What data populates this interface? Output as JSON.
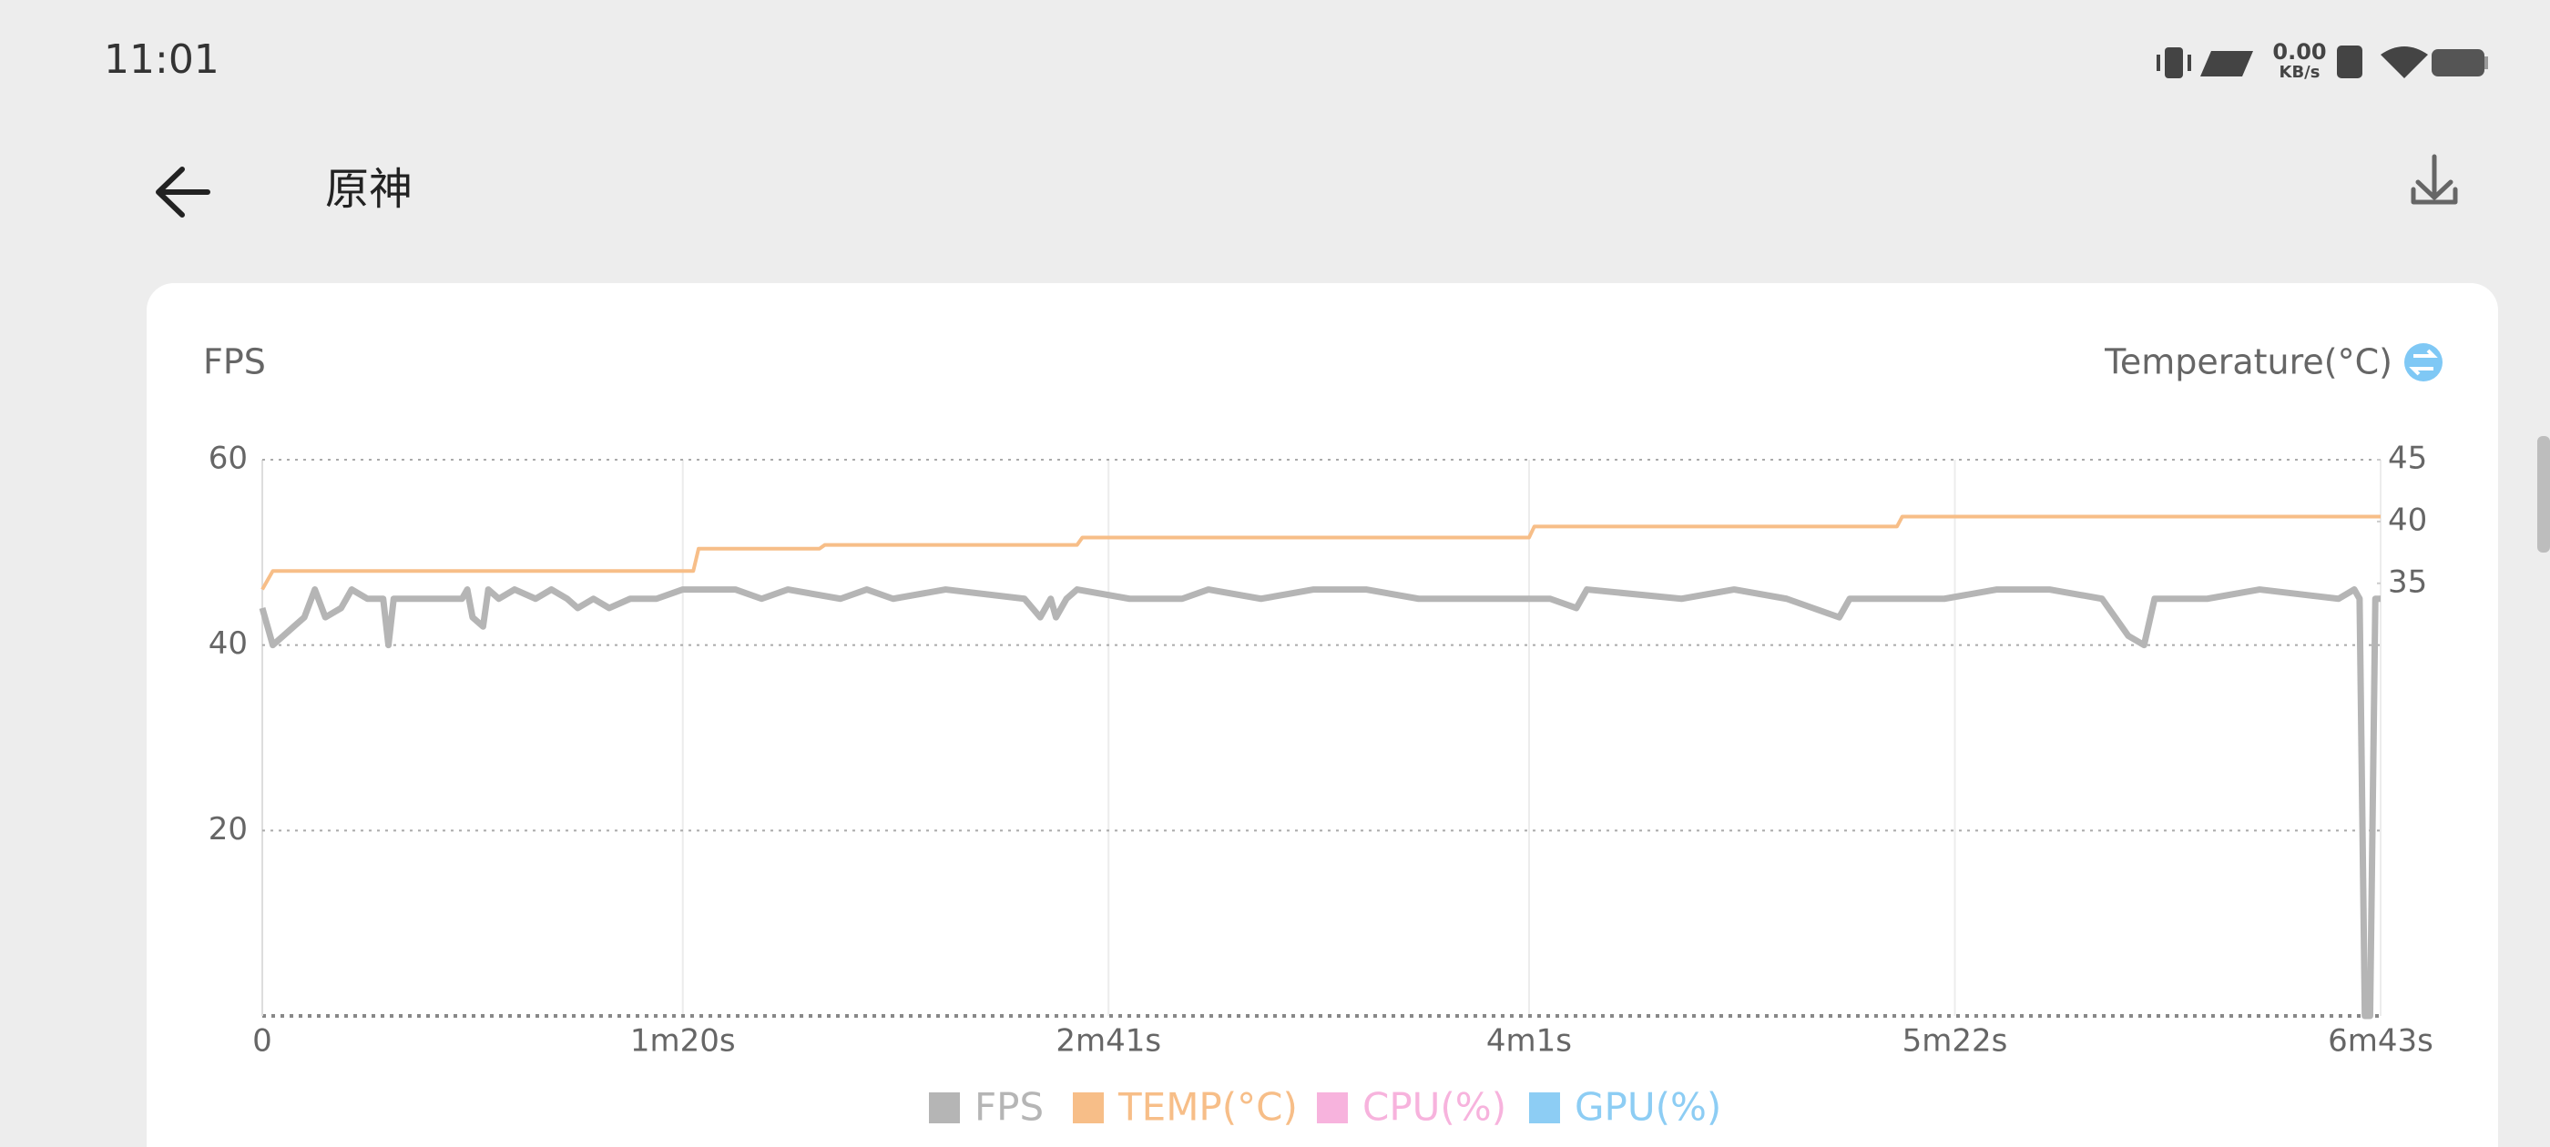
{
  "status_bar": {
    "time": "11:01",
    "network_speed": "0.00",
    "network_unit": "KB/s"
  },
  "header": {
    "title": "原神"
  },
  "chart_data": {
    "type": "line",
    "y_label": "FPS",
    "y2_label": "Temperature(°C)",
    "xlim": [
      0,
      403
    ],
    "xticks": [
      0,
      {
        "value": 80,
        "label": "1m20s"
      },
      {
        "value": 161,
        "label": "2m41s"
      },
      {
        "value": 241,
        "label": "4m1s"
      },
      {
        "value": 322,
        "label": "5m22s"
      },
      {
        "value": 403,
        "label": "6m43s"
      }
    ],
    "ylim": [
      0,
      60
    ],
    "yticks": [
      20,
      40,
      60
    ],
    "y2lim": [
      0,
      45
    ],
    "y2ticks": [
      35,
      40,
      45
    ],
    "grid": true,
    "series": [
      {
        "name": "FPS",
        "color": "#b5b5b5",
        "axis": "y",
        "x": [
          0,
          2,
          4,
          6,
          8,
          10,
          12,
          15,
          17,
          20,
          23,
          24,
          25,
          30,
          38,
          39,
          40,
          42,
          43,
          45,
          48,
          52,
          55,
          58,
          60,
          63,
          66,
          70,
          75,
          80,
          90,
          95,
          100,
          110,
          115,
          120,
          130,
          145,
          148,
          150,
          151,
          153,
          155,
          165,
          175,
          180,
          190,
          200,
          210,
          220,
          235,
          245,
          250,
          252,
          270,
          280,
          290,
          300,
          302,
          310,
          320,
          330,
          340,
          350,
          355,
          358,
          360,
          370,
          380,
          395,
          398,
          399,
          400,
          401,
          402,
          403
        ],
        "values": [
          44,
          40,
          41,
          42,
          43,
          46,
          43,
          44,
          46,
          45,
          45,
          40,
          45,
          45,
          45,
          46,
          43,
          42,
          46,
          45,
          46,
          45,
          46,
          45,
          44,
          45,
          44,
          45,
          45,
          46,
          46,
          45,
          46,
          45,
          46,
          45,
          46,
          45,
          43,
          45,
          43,
          45,
          46,
          45,
          45,
          46,
          45,
          46,
          46,
          45,
          45,
          45,
          44,
          46,
          45,
          46,
          45,
          43,
          45,
          45,
          45,
          46,
          46,
          45,
          41,
          40,
          45,
          45,
          46,
          45,
          46,
          45,
          0,
          0,
          45,
          45
        ]
      },
      {
        "name": "TEMP(°C)",
        "color": "#f7be88",
        "axis": "y2",
        "x": [
          0,
          2,
          82,
          83,
          106,
          107,
          155,
          156,
          241,
          242,
          311,
          312,
          403
        ],
        "values": [
          34.5,
          36,
          36,
          37.8,
          37.8,
          38.1,
          38.1,
          38.7,
          38.7,
          39.6,
          39.6,
          40.4,
          40.4
        ]
      },
      {
        "name": "CPU(%)",
        "color": "#f7b3dd"
      },
      {
        "name": "GPU(%)",
        "color": "#8dcdf4"
      }
    ]
  }
}
